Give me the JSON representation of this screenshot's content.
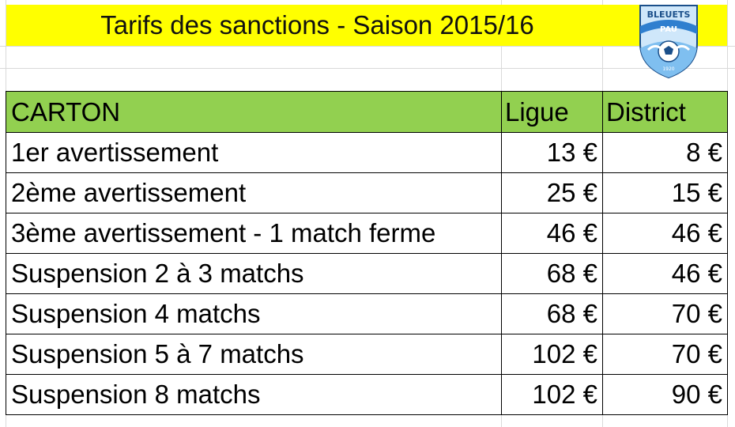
{
  "title": "Tarifs des sanctions - Saison 2015/16",
  "logo": {
    "text_top": "BLEUETS",
    "text_mid": "PAU",
    "year": "1920",
    "colors": {
      "primary": "#2f7fcf",
      "light": "#9fd0f5",
      "dark": "#1b4f8a"
    }
  },
  "colors": {
    "title_bg": "#ffff00",
    "header_bg": "#92d050"
  },
  "table": {
    "headers": [
      "CARTON",
      "Ligue",
      "District"
    ],
    "rows": [
      [
        "1er avertissement",
        "13 €",
        "8 €"
      ],
      [
        "2ème avertissement",
        "25 €",
        "15 €"
      ],
      [
        "3ème avertissement - 1 match ferme",
        "46 €",
        "46 €"
      ],
      [
        "Suspension 2 à 3 matchs",
        "68 €",
        "46 €"
      ],
      [
        "Suspension 4 matchs",
        "68 €",
        "70 €"
      ],
      [
        "Suspension 5 à 7 matchs",
        "102 €",
        "70 €"
      ],
      [
        "Suspension 8 matchs",
        "102 €",
        "90 €"
      ]
    ]
  }
}
